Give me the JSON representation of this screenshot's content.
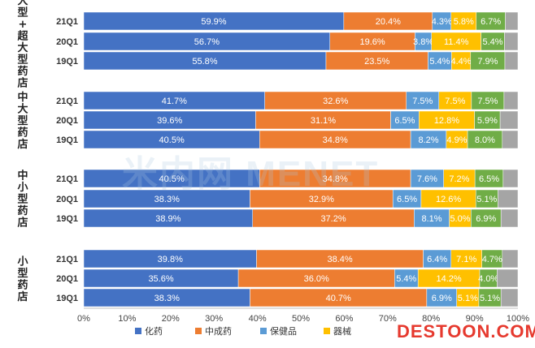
{
  "chart_data": {
    "type": "bar",
    "orientation": "horizontal",
    "stacked": "percent",
    "categories_by_group": [
      {
        "group": "大型+超大型药店",
        "rows": [
          "21Q1",
          "20Q1",
          "19Q1"
        ]
      },
      {
        "group": "中大型药店",
        "rows": [
          "21Q1",
          "20Q1",
          "19Q1"
        ]
      },
      {
        "group": "中小型药店",
        "rows": [
          "21Q1",
          "20Q1",
          "19Q1"
        ]
      },
      {
        "group": "小型药店",
        "rows": [
          "21Q1",
          "20Q1",
          "19Q1"
        ]
      }
    ],
    "series": [
      {
        "name": "化药",
        "color": "#4472C4",
        "values": [
          59.9,
          56.7,
          55.8,
          41.7,
          39.6,
          40.5,
          40.5,
          38.3,
          38.9,
          39.8,
          35.6,
          38.3
        ],
        "labels": [
          "59.9%",
          "56.7%",
          "55.8%",
          "41.7%",
          "39.6%",
          "40.5%",
          "40.5%",
          "38.3%",
          "38.9%",
          "39.8%",
          "35.6%",
          "38.3%"
        ]
      },
      {
        "name": "中成药",
        "color": "#ED7D31",
        "values": [
          20.4,
          19.6,
          23.5,
          32.6,
          31.1,
          34.8,
          34.8,
          32.9,
          37.2,
          38.4,
          36.0,
          40.7
        ],
        "labels": [
          "20.4%",
          "19.6%",
          "23.5%",
          "32.6%",
          "31.1%",
          "34.8%",
          "34.8%",
          "32.9%",
          "37.2%",
          "38.4%",
          "36.0%",
          "40.7%"
        ]
      },
      {
        "name": "保健品",
        "color": "#5B9BD5",
        "values": [
          4.3,
          3.8,
          5.4,
          7.5,
          6.5,
          8.2,
          7.6,
          6.5,
          8.1,
          6.4,
          5.4,
          6.9
        ],
        "labels": [
          "4.3%",
          "3.8%",
          "5.4%",
          "7.5%",
          "6.5%",
          "8.2%",
          "7.6%",
          "6.5%",
          "8.1%",
          "6.4%",
          "5.4%",
          "6.9%"
        ]
      },
      {
        "name": "器械",
        "color": "#FFC000",
        "values": [
          5.8,
          11.4,
          4.4,
          7.5,
          12.8,
          4.9,
          7.2,
          12.6,
          5.0,
          7.1,
          14.2,
          5.1
        ],
        "labels": [
          "5.8%",
          "11.4%",
          "4.4%",
          "7.5%",
          "12.8%",
          "4.9%",
          "7.2%",
          "12.6%",
          "5.0%",
          "7.1%",
          "14.2%",
          "5.1%"
        ]
      },
      {
        "color": "#70AD47",
        "values": [
          6.7,
          5.4,
          7.9,
          7.5,
          5.9,
          8.0,
          6.5,
          5.1,
          6.9,
          4.7,
          4.0,
          5.1
        ],
        "labels": [
          "6.7%",
          "5.4%",
          "7.9%",
          "7.5%",
          "5.9%",
          "8.0%",
          "6.5%",
          "5.1%",
          "6.9%",
          "4.7%",
          "4.0%",
          "5.1%"
        ]
      },
      {
        "color": "#A5A5A5",
        "values": [
          2.9,
          3.1,
          3.0,
          3.2,
          4.1,
          3.6,
          3.4,
          4.6,
          3.9,
          3.6,
          4.8,
          3.9
        ],
        "labels": []
      }
    ],
    "xaxis": {
      "ticks": [
        "0%",
        "10%",
        "20%",
        "30%",
        "40%",
        "50%",
        "60%",
        "70%",
        "80%",
        "90%",
        "100%"
      ],
      "range": [
        0,
        100
      ]
    },
    "grid": false,
    "legend_position": "bottom"
  },
  "legend_items": [
    "化药",
    "中成药",
    "保健品",
    "器械"
  ],
  "watermarks": {
    "center": "米内网 MENET",
    "bottom_right": "DESTOON.COM"
  }
}
